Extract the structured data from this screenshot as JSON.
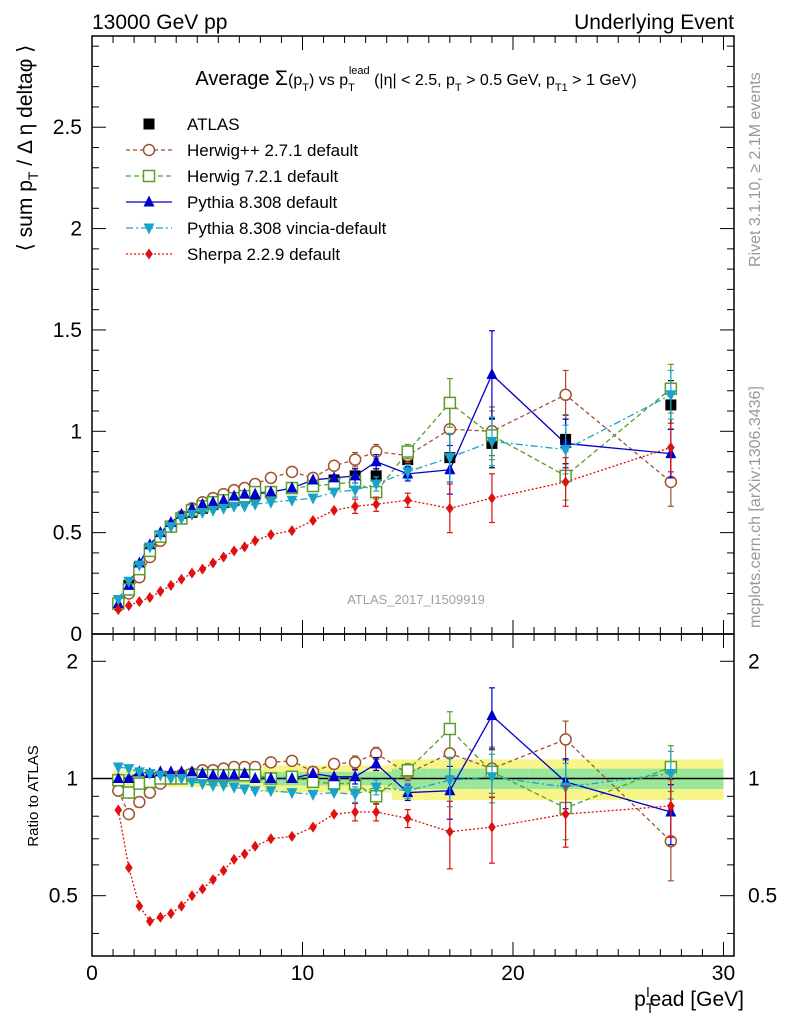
{
  "header": {
    "left": "13000 GeV pp",
    "right": "Underlying Event"
  },
  "side_text": {
    "rivet": "Rivet 3.1.10, ≥ 2.1M events",
    "mcplots": "mcplots.cern.ch [arXiv:1306.3436]"
  },
  "analysis_label": "ATLAS_2017_I1509919",
  "colors": {
    "ATLAS": "#000000",
    "Herwig++ 2.7.1 default": "#a0522d",
    "Herwig 7.2.1 default": "#5a9e2a",
    "Pythia 8.308 default": "#0000cc",
    "Pythia 8.308 vincia-default": "#1aa3c9",
    "Sherpa 2.2.9 default": "#e01010",
    "band_yellow": "#f5f58a",
    "band_green": "#9ae69a"
  },
  "chart_data": [
    {
      "type": "scatter",
      "title": "Average Σ(p_T) vs p_T^lead (|η| < 2.5, p_T > 0.5 GeV, p_T1 > 1 GeV)",
      "ylabel": "⟨ sum p_T / Δ η deltaφ ⟩",
      "xlabel": "p_T^lead [GeV]",
      "xlim": [
        0,
        30.5
      ],
      "ylim": [
        0,
        2.95
      ],
      "yticks": [
        "0",
        "0.5",
        "1",
        "1.5",
        "2",
        "2.5"
      ],
      "legend_position": "top-left",
      "x": [
        1.25,
        1.75,
        2.25,
        2.75,
        3.25,
        3.75,
        4.25,
        4.75,
        5.25,
        5.75,
        6.25,
        6.75,
        7.25,
        7.75,
        8.5,
        9.5,
        10.5,
        11.5,
        12.5,
        13.5,
        15,
        17,
        19,
        22.5,
        27.5
      ],
      "series": [
        {
          "name": "ATLAS",
          "marker": "square-filled",
          "values": [
            0.15,
            0.24,
            0.33,
            0.42,
            0.48,
            0.53,
            0.57,
            0.6,
            0.62,
            0.64,
            0.65,
            0.66,
            0.67,
            0.69,
            0.7,
            0.72,
            0.74,
            0.76,
            0.78,
            0.78,
            0.86,
            0.87,
            0.94,
            0.96,
            1.13
          ]
        },
        {
          "name": "Herwig++ 2.7.1 default",
          "marker": "circle-open",
          "dash": "4,3",
          "values": [
            0.14,
            0.2,
            0.28,
            0.38,
            0.46,
            0.53,
            0.58,
            0.62,
            0.65,
            0.67,
            0.69,
            0.71,
            0.72,
            0.74,
            0.77,
            0.8,
            0.77,
            0.83,
            0.86,
            0.9,
            0.88,
            1.01,
            1.0,
            1.18,
            0.75
          ]
        },
        {
          "name": "Herwig 7.2.1 default",
          "marker": "square-open",
          "dash": "5,3",
          "values": [
            0.15,
            0.22,
            0.32,
            0.41,
            0.48,
            0.53,
            0.57,
            0.61,
            0.63,
            0.65,
            0.66,
            0.67,
            0.68,
            0.7,
            0.7,
            0.72,
            0.73,
            0.74,
            0.75,
            0.7,
            0.9,
            1.14,
            0.98,
            0.78,
            1.21
          ]
        },
        {
          "name": "Pythia 8.308 default",
          "marker": "triangle-up-filled",
          "dash": "",
          "values": [
            0.15,
            0.24,
            0.35,
            0.44,
            0.5,
            0.55,
            0.59,
            0.62,
            0.64,
            0.65,
            0.66,
            0.68,
            0.69,
            0.69,
            0.7,
            0.72,
            0.76,
            0.77,
            0.78,
            0.85,
            0.79,
            0.81,
            1.28,
            0.94,
            0.89
          ]
        },
        {
          "name": "Pythia 8.308 vincia-default",
          "marker": "triangle-down-filled",
          "dash": "7,3,2,3",
          "values": [
            0.17,
            0.26,
            0.34,
            0.43,
            0.49,
            0.53,
            0.57,
            0.59,
            0.6,
            0.61,
            0.62,
            0.63,
            0.63,
            0.64,
            0.65,
            0.66,
            0.67,
            0.7,
            0.71,
            0.74,
            0.8,
            0.87,
            0.95,
            0.91,
            1.18
          ]
        },
        {
          "name": "Sherpa 2.2.9 default",
          "marker": "diamond-filled",
          "dash": "2,2",
          "values": [
            0.12,
            0.14,
            0.16,
            0.18,
            0.21,
            0.24,
            0.27,
            0.3,
            0.32,
            0.35,
            0.38,
            0.41,
            0.43,
            0.46,
            0.49,
            0.51,
            0.56,
            0.61,
            0.63,
            0.64,
            0.66,
            0.62,
            0.67,
            0.75,
            0.92
          ]
        }
      ]
    },
    {
      "type": "scatter",
      "ylabel": "Ratio to ATLAS",
      "xlabel": "p_T^lead [GeV]",
      "xlim": [
        0,
        30.5
      ],
      "ylim": [
        0.35,
        2.35
      ],
      "yticks": [
        "0.5",
        "1",
        "2"
      ],
      "xticks": [
        "0",
        "10",
        "20",
        "30"
      ],
      "reference_line": 1,
      "x": [
        1.25,
        1.75,
        2.25,
        2.75,
        3.25,
        3.75,
        4.25,
        4.75,
        5.25,
        5.75,
        6.25,
        6.75,
        7.25,
        7.75,
        8.5,
        9.5,
        10.5,
        11.5,
        12.5,
        13.5,
        15,
        17,
        19,
        22.5,
        27.5
      ],
      "series": [
        {
          "name": "Herwig++ 2.7.1 default",
          "marker": "circle-open",
          "dash": "4,3",
          "values": [
            0.93,
            0.81,
            0.87,
            0.92,
            0.97,
            1.0,
            1.02,
            1.03,
            1.05,
            1.05,
            1.06,
            1.07,
            1.07,
            1.07,
            1.1,
            1.11,
            1.04,
            1.09,
            1.1,
            1.16,
            1.03,
            1.16,
            1.06,
            1.26,
            0.69
          ]
        },
        {
          "name": "Herwig 7.2.1 default",
          "marker": "square-open",
          "dash": "5,3",
          "values": [
            0.99,
            0.92,
            0.97,
            0.98,
            1.0,
            1.0,
            1.0,
            1.02,
            1.02,
            1.02,
            1.02,
            1.02,
            1.02,
            1.02,
            1.0,
            1.01,
            0.98,
            0.97,
            0.97,
            0.9,
            1.05,
            1.34,
            1.04,
            0.84,
            1.07
          ]
        },
        {
          "name": "Pythia 8.308 default",
          "marker": "triangle-up-filled",
          "dash": "",
          "values": [
            1.0,
            1.0,
            1.04,
            1.03,
            1.04,
            1.04,
            1.04,
            1.04,
            1.03,
            1.02,
            1.02,
            1.02,
            1.03,
            1.0,
            1.0,
            1.0,
            1.03,
            1.01,
            1.01,
            1.09,
            0.92,
            0.93,
            1.45,
            0.98,
            0.82
          ]
        },
        {
          "name": "Pythia 8.308 vincia-default",
          "marker": "triangle-down-filled",
          "dash": "7,3,2,3",
          "values": [
            1.07,
            1.06,
            1.04,
            1.03,
            1.02,
            1.0,
            1.0,
            0.98,
            0.97,
            0.96,
            0.96,
            0.95,
            0.94,
            0.93,
            0.93,
            0.92,
            0.91,
            0.92,
            0.91,
            0.95,
            0.93,
            0.99,
            1.01,
            0.95,
            1.03
          ]
        },
        {
          "name": "Sherpa 2.2.9 default",
          "marker": "diamond-filled",
          "dash": "2,2",
          "values": [
            0.83,
            0.59,
            0.47,
            0.43,
            0.44,
            0.45,
            0.47,
            0.5,
            0.52,
            0.55,
            0.58,
            0.62,
            0.64,
            0.67,
            0.7,
            0.71,
            0.75,
            0.81,
            0.82,
            0.82,
            0.79,
            0.73,
            0.75,
            0.81,
            0.85
          ]
        }
      ]
    }
  ]
}
